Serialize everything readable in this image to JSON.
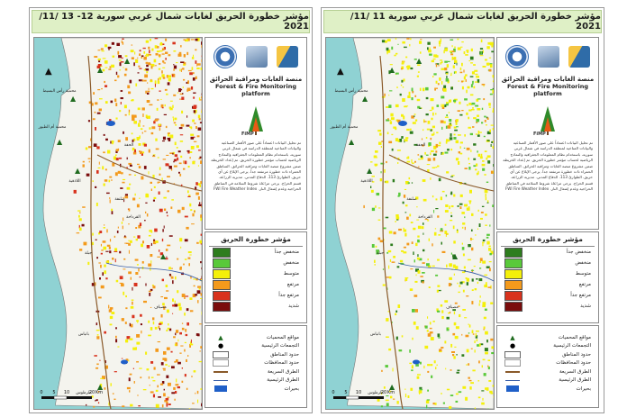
{
  "panels": [
    {
      "title": "مؤشر خطورة الحريق لغابات شمال غربي سورية   12- 13 /11/ 2021",
      "scale": [
        "0",
        "5",
        "10",
        "20",
        "Km"
      ]
    },
    {
      "title": "مؤشر خطورة الحريق لغابات شمال غربي سورية   11 /11/ 2021",
      "scale": [
        "0",
        "5",
        "10",
        "20",
        "Km"
      ]
    }
  ],
  "platform": {
    "name_ar": "منصة الغابات ومراقبة الحرائق",
    "name_en": "Forest & Fire Monitoring platform",
    "acronym": "FiMP"
  },
  "map_labels": [
    "محمية رأس البسيط",
    "محمية أم الطيور",
    "صلنفة",
    "جبلة",
    "بانياس",
    "اللاذقية",
    "القرداحة",
    "الحفة",
    "مصياف",
    "طرطوس"
  ],
  "info_text": "تم تحليل البيانات اعتماداً على صور الأقمار الصناعية والبيانات المناخية لمنطقة الدراسة في شمال غربي سورية، باستخدام نظام المعلومات الجغرافية والنماذج الرياضية لحساب مؤشر خطورة الحريق. تم إعداد الخريطة ضمن مشروع منصة الغابات ومراقبة الحرائق. المناطق الحمراء ذات خطورة مرتفعة جداً. يرجى الإبلاغ عن أي حريق. الطوارئ 113. الدفاع المدني. مديرية الزراعة. قسم الحراج. يرجى مراعاة شروط السلامة في المناطق الحراجية وعدم إشعال النار. FWI Fire Weather Index",
  "legend": {
    "title": "مؤشر خطورة الحريق",
    "classes": [
      {
        "label": "منخفض جداً",
        "color": "#2e7d1e"
      },
      {
        "label": "منخفض",
        "color": "#59c93a"
      },
      {
        "label": "متوسط",
        "color": "#f4f00a"
      },
      {
        "label": "مرتفع",
        "color": "#f39a1c"
      },
      {
        "label": "مرتفع جداً",
        "color": "#d8321d"
      },
      {
        "label": "شديد",
        "color": "#7a0c0c"
      }
    ]
  },
  "legend2": [
    {
      "label": "مواقع المحميات",
      "icon": "tree-icon"
    },
    {
      "label": "التجمعات الرئيسية",
      "icon": "dot-icon"
    },
    {
      "label": "حدود المناطق",
      "icon": "area-boundary-icon"
    },
    {
      "label": "حدود المحافظات",
      "icon": "province-boundary-icon"
    },
    {
      "label": "الطرق السريعة",
      "icon": "highway-icon"
    },
    {
      "label": "الطرق الرئيسية",
      "icon": "main-road-icon"
    },
    {
      "label": "بحيرات",
      "icon": "lake-icon"
    }
  ],
  "colors": {
    "sea": "#8fd2d3",
    "land": "#f4f4ee",
    "title_bg": "#dff0c6"
  }
}
